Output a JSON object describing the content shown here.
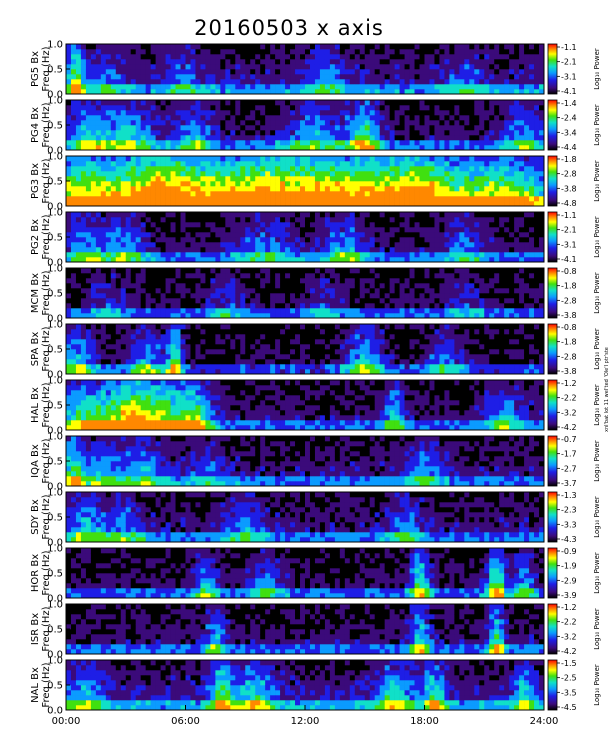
{
  "title": "20160503  x  axis",
  "side_note": "xnl'bat lot 11 weI'ted 'Ole'I ptr'ste",
  "chart_data": {
    "type": "heatmap",
    "x_ticks": [
      "00:00",
      "06:00",
      "12:00",
      "18:00",
      "24:00"
    ],
    "xlim_hours": [
      0,
      24
    ],
    "freq_ticks": [
      "0.0",
      "0.5",
      "1.0"
    ],
    "ylim_hz": [
      0,
      1.0
    ],
    "freq_label": "Freq  (Hz)",
    "colorbar_label": "Log₁₀  Power",
    "colormap": [
      "#000000",
      "#3b0a7a",
      "#1e1ee6",
      "#0b9bff",
      "#10e0c8",
      "#40e010",
      "#ffff00",
      "#ff8800",
      "#ff0000"
    ],
    "panels": [
      {
        "station": "PG5 Bx",
        "cbar": [
          "-1.1",
          "-2.1",
          "-3.1",
          "-4.1"
        ]
      },
      {
        "station": "PG4 Bx",
        "cbar": [
          "-1.4",
          "-2.4",
          "-3.4",
          "-4.4"
        ]
      },
      {
        "station": "PG3 Bx",
        "cbar": [
          "-1.8",
          "-2.8",
          "-3.8",
          "-4.8"
        ]
      },
      {
        "station": "PG2 Bx",
        "cbar": [
          "-1.1",
          "-2.1",
          "-3.1",
          "-4.1"
        ]
      },
      {
        "station": "MCM Bx",
        "cbar": [
          "-0.8",
          "-1.8",
          "-2.8",
          "-3.8"
        ]
      },
      {
        "station": "SPA Bx",
        "cbar": [
          "-0.8",
          "-1.8",
          "-2.8",
          "-3.8"
        ]
      },
      {
        "station": "HAL Bx",
        "cbar": [
          "-1.2",
          "-2.2",
          "-3.2",
          "-4.2"
        ]
      },
      {
        "station": "IQA Bx",
        "cbar": [
          "-0.7",
          "-1.7",
          "-2.7",
          "-3.7"
        ]
      },
      {
        "station": "SDY Bx",
        "cbar": [
          "-1.3",
          "-2.3",
          "-3.3",
          "-4.3"
        ]
      },
      {
        "station": "HOR Bx",
        "cbar": [
          "-0.9",
          "-1.9",
          "-2.9",
          "-3.9"
        ]
      },
      {
        "station": "ISR Bx",
        "cbar": [
          "-1.2",
          "-2.2",
          "-3.2",
          "-4.2"
        ]
      },
      {
        "station": "NAL Bx",
        "cbar": [
          "-1.5",
          "-2.5",
          "-3.5",
          "-4.5"
        ]
      }
    ]
  }
}
